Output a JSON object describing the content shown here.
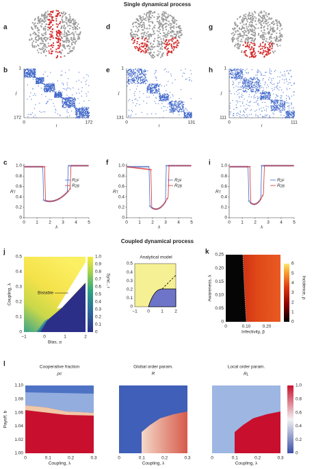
{
  "sections": [
    "Single dynamical process",
    "Coupled dynamical process"
  ],
  "brains": [
    {
      "label": "a"
    },
    {
      "label": "d"
    },
    {
      "label": "g"
    }
  ],
  "matrices": [
    {
      "label": "b",
      "y_top": "1",
      "y_bottom": "172",
      "x_left": "0",
      "x_right": "172",
      "x_label": "i",
      "y_label": "j"
    },
    {
      "label": "e",
      "y_top": "1",
      "y_bottom": "131",
      "x_left": "0",
      "x_right": "131",
      "x_label": "i",
      "y_label": "j"
    },
    {
      "label": "h",
      "y_top": "1",
      "y_bottom": "111",
      "x_left": "0",
      "x_right": "111",
      "x_label": "i",
      "y_label": "j"
    }
  ],
  "order_plots": [
    {
      "label": "c",
      "y_label": "R",
      "y_label_sub": "T",
      "x_label": "λ",
      "yticks": [
        "1.0",
        "0.8",
        "0.6",
        "0.4",
        "0.2",
        "0"
      ],
      "xticks": [
        "0",
        "1",
        "2",
        "3",
        "4",
        "5"
      ],
      "legend": [
        {
          "text": "R",
          "sub": "2F"
        },
        {
          "text": "R",
          "sub": "2B"
        }
      ]
    },
    {
      "label": "f",
      "y_label": "R",
      "y_label_sub": "T",
      "x_label": "λ",
      "yticks": [
        "1.0",
        "0.8",
        "0.6",
        "0.4",
        "0.2",
        "0"
      ],
      "xticks": [
        "0",
        "1",
        "2",
        "3",
        "4",
        "5"
      ],
      "legend": [
        {
          "text": "R",
          "sub": "2F"
        },
        {
          "text": "R",
          "sub": "2B"
        }
      ]
    },
    {
      "label": "i",
      "y_label": "R",
      "y_label_sub": "T",
      "x_label": "λ",
      "yticks": [
        "1.0",
        "0.8",
        "0.6",
        "0.4",
        "0.2",
        "0"
      ],
      "xticks": [
        "0",
        "1",
        "2",
        "3",
        "4",
        "5"
      ],
      "legend": [
        {
          "text": "R",
          "sub": "2F"
        },
        {
          "text": "R",
          "sub": "2B"
        }
      ]
    }
  ],
  "panel_j": {
    "label": "j",
    "y_label": "Coupling, λ",
    "x_label": "Bias, α",
    "yticks": [
      "0.5",
      "0.4",
      "0.3",
      "0.2",
      "0.1",
      "0"
    ],
    "xticks": [
      "−1",
      "0",
      "1",
      "2"
    ],
    "annotation": "Bistable",
    "colorbar_label": "Sync., r",
    "colorbar_ticks": [
      "1.0",
      "0.9",
      "0.8",
      "0.7",
      "0.6",
      "0.5",
      "0.4",
      "0.3",
      "0.2",
      "0.1",
      "0"
    ],
    "inset": {
      "title": "Analytical model",
      "yticks": [
        "0.5",
        "0.4",
        "0.3",
        "0.2",
        "0.1",
        "0"
      ],
      "xticks": [
        "−1",
        "0",
        "1",
        "2"
      ]
    }
  },
  "panel_k": {
    "label": "k",
    "y_label": "Awareness, λ",
    "x_label": "Infectivity, β",
    "yticks": [
      "0.25",
      "0.20",
      "0.15",
      "0.10",
      "0.05",
      "0"
    ],
    "xticks": [
      "0",
      "0.10",
      "0.20"
    ],
    "colorbar_label": "Incidence, ρ",
    "colorbar_ticks": [
      "6",
      "5",
      "4",
      "3",
      "2",
      "1",
      "0"
    ]
  },
  "panel_l": {
    "label": "l",
    "y_label": "Payoff, b",
    "x_label": "Coupling, λ",
    "yticks": [
      "1.10",
      "1.08",
      "1.06",
      "1.04",
      "1.02",
      "1.00"
    ],
    "xticks": [
      "0",
      "0.1",
      "0.2",
      "0.3"
    ],
    "maps": [
      {
        "title": "Cooperative fraction",
        "subtitle": "ρc"
      },
      {
        "title": "Global order param.",
        "subtitle": "R"
      },
      {
        "title": "Local order param.",
        "subtitle": "R",
        "subtitle_sub": "L"
      }
    ],
    "colorbar_ticks": [
      "1.0",
      "0.8",
      "0.6",
      "0.4",
      "0.2",
      "0"
    ]
  }
}
